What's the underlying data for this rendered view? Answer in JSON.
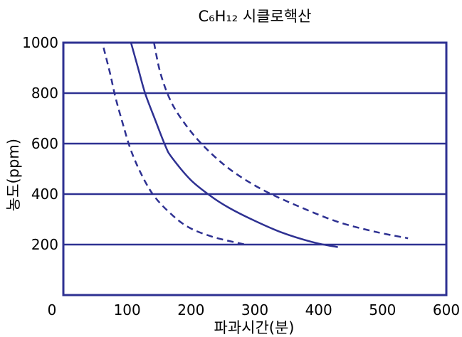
{
  "chart_data": {
    "type": "line",
    "title": "C₆H₁₂ 시클로핵산",
    "xlabel": "파과시간(분)",
    "ylabel": "농도(ppm)",
    "xlim": [
      0,
      600
    ],
    "ylim": [
      0,
      1000
    ],
    "x_ticks": [
      "0",
      "100",
      "200",
      "300",
      "400",
      "500",
      "600"
    ],
    "y_ticks": [
      "200",
      "400",
      "600",
      "800",
      "1000"
    ],
    "grid": "horizontal",
    "colors": {
      "line": "#2e3192",
      "frame": "#2e3192"
    },
    "series": [
      {
        "style": "dashed",
        "points": [
          [
            63,
            980
          ],
          [
            73,
            880
          ],
          [
            82,
            780
          ],
          [
            93,
            680
          ],
          [
            105,
            580
          ],
          [
            120,
            490
          ],
          [
            140,
            400
          ],
          [
            165,
            330
          ],
          [
            195,
            270
          ],
          [
            235,
            230
          ],
          [
            285,
            200
          ]
        ]
      },
      {
        "style": "solid",
        "points": [
          [
            106,
            1000
          ],
          [
            117,
            900
          ],
          [
            128,
            800
          ],
          [
            143,
            700
          ],
          [
            160,
            590
          ],
          [
            170,
            545
          ],
          [
            200,
            455
          ],
          [
            232,
            390
          ],
          [
            260,
            345
          ],
          [
            295,
            300
          ],
          [
            340,
            250
          ],
          [
            390,
            210
          ],
          [
            430,
            190
          ]
        ]
      },
      {
        "style": "dashed",
        "points": [
          [
            142,
            1000
          ],
          [
            152,
            880
          ],
          [
            168,
            770
          ],
          [
            190,
            680
          ],
          [
            220,
            590
          ],
          [
            260,
            500
          ],
          [
            310,
            420
          ],
          [
            370,
            350
          ],
          [
            430,
            290
          ],
          [
            490,
            250
          ],
          [
            540,
            225
          ]
        ]
      }
    ]
  }
}
